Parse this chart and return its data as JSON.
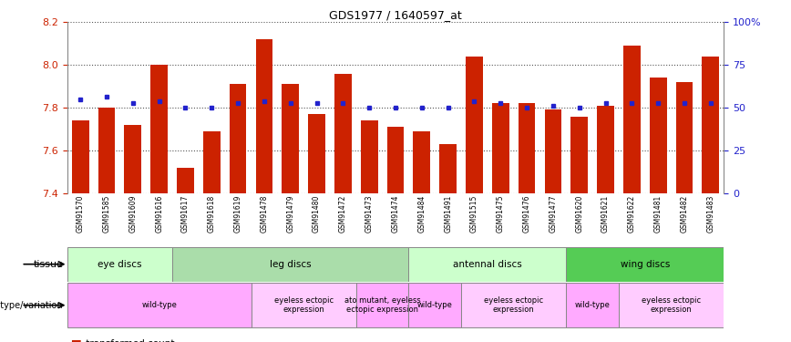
{
  "title": "GDS1977 / 1640597_at",
  "samples": [
    "GSM91570",
    "GSM91585",
    "GSM91609",
    "GSM91616",
    "GSM91617",
    "GSM91618",
    "GSM91619",
    "GSM91478",
    "GSM91479",
    "GSM91480",
    "GSM91472",
    "GSM91473",
    "GSM91474",
    "GSM91484",
    "GSM91491",
    "GSM91515",
    "GSM91475",
    "GSM91476",
    "GSM91477",
    "GSM91620",
    "GSM91621",
    "GSM91622",
    "GSM91481",
    "GSM91482",
    "GSM91483"
  ],
  "bar_values": [
    7.74,
    7.8,
    7.72,
    8.0,
    7.52,
    7.69,
    7.91,
    8.12,
    7.91,
    7.77,
    7.96,
    7.74,
    7.71,
    7.69,
    7.63,
    8.04,
    7.82,
    7.82,
    7.79,
    7.76,
    7.81,
    8.09,
    7.94,
    7.92,
    8.04
  ],
  "dot_values": [
    7.84,
    7.85,
    7.82,
    7.83,
    7.8,
    7.8,
    7.82,
    7.83,
    7.82,
    7.82,
    7.82,
    7.8,
    7.8,
    7.8,
    7.8,
    7.83,
    7.82,
    7.8,
    7.81,
    7.8,
    7.82,
    7.82,
    7.82,
    7.82,
    7.82
  ],
  "ymin": 7.4,
  "ymax": 8.2,
  "bar_color": "#cc2200",
  "dot_color": "#2222cc",
  "tissues": [
    {
      "label": "eye discs",
      "start": 0,
      "end": 4,
      "color": "#ccffcc"
    },
    {
      "label": "leg discs",
      "start": 4,
      "end": 13,
      "color": "#aaddaa"
    },
    {
      "label": "antennal discs",
      "start": 13,
      "end": 19,
      "color": "#ccffcc"
    },
    {
      "label": "wing discs",
      "start": 19,
      "end": 25,
      "color": "#55cc55"
    }
  ],
  "genotypes": [
    {
      "label": "wild-type",
      "start": 0,
      "end": 7,
      "color": "#ffaaff"
    },
    {
      "label": "eyeless ectopic\nexpression",
      "start": 7,
      "end": 11,
      "color": "#ffccff"
    },
    {
      "label": "ato mutant, eyeless\nectopic expression",
      "start": 11,
      "end": 13,
      "color": "#ffaaff"
    },
    {
      "label": "wild-type",
      "start": 13,
      "end": 15,
      "color": "#ffaaff"
    },
    {
      "label": "eyeless ectopic\nexpression",
      "start": 15,
      "end": 19,
      "color": "#ffccff"
    },
    {
      "label": "wild-type",
      "start": 19,
      "end": 21,
      "color": "#ffaaff"
    },
    {
      "label": "eyeless ectopic\nexpression",
      "start": 21,
      "end": 25,
      "color": "#ffccff"
    }
  ]
}
